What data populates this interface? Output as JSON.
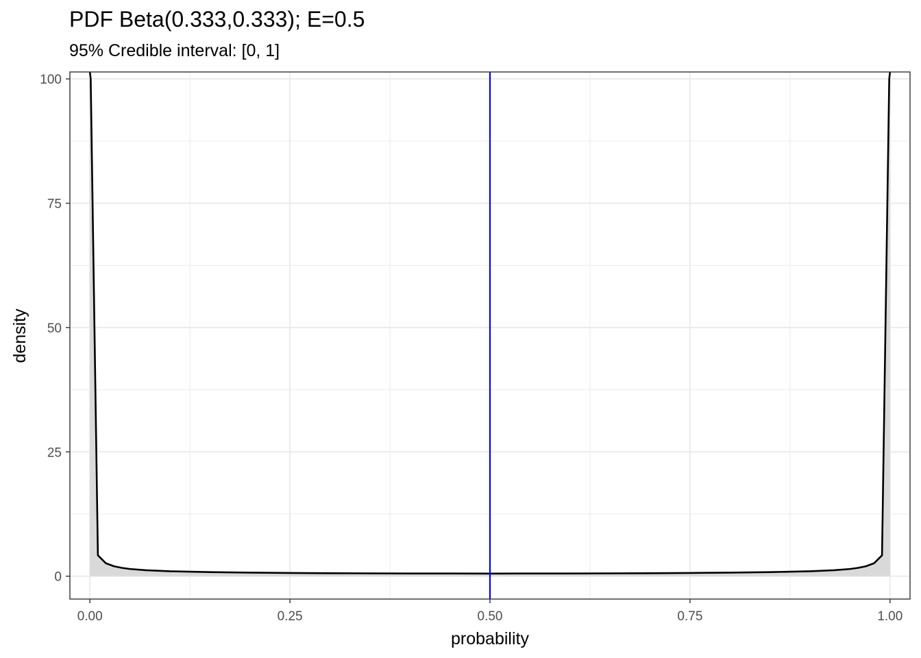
{
  "chart_data": {
    "type": "area",
    "title": "PDF Beta(0.333,0.333); E=0.5",
    "subtitle": "95% Credible interval: [0, 1]",
    "xlabel": "probability",
    "ylabel": "density",
    "xlim": [
      -0.025,
      1.025
    ],
    "ylim": [
      -4.6,
      101.4
    ],
    "x_ticks": [
      0.0,
      0.25,
      0.5,
      0.75,
      1.0
    ],
    "x_tick_labels": [
      "0.00",
      "0.25",
      "0.50",
      "0.75",
      "1.00"
    ],
    "y_ticks": [
      0,
      25,
      50,
      75,
      100
    ],
    "y_tick_labels": [
      "0",
      "25",
      "50",
      "75",
      "100"
    ],
    "grid": true,
    "legend": "none",
    "series": [
      {
        "x": [
          0.0,
          0.001,
          0.01,
          0.02,
          0.03,
          0.04,
          0.05,
          0.07,
          0.1,
          0.15,
          0.2,
          0.25,
          0.3,
          0.35,
          0.4,
          0.45,
          0.5,
          0.55,
          0.6,
          0.65,
          0.7,
          0.75,
          0.8,
          0.85,
          0.9,
          0.93,
          0.95,
          0.96,
          0.97,
          0.98,
          0.99,
          0.999,
          1.0
        ],
        "values": [
          120,
          100,
          4.2,
          2.6,
          2.0,
          1.67,
          1.45,
          1.2,
          0.99,
          0.82,
          0.72,
          0.65,
          0.6,
          0.57,
          0.55,
          0.54,
          0.53,
          0.54,
          0.55,
          0.57,
          0.6,
          0.65,
          0.72,
          0.82,
          0.99,
          1.2,
          1.45,
          1.67,
          2.0,
          2.6,
          4.2,
          100,
          120
        ]
      }
    ],
    "credible_interval": [
      0,
      1
    ],
    "reference_line": {
      "x": 0.5,
      "label": "E=0.5"
    },
    "colors": {
      "curve": "#000000",
      "fill": "#d9d9d9",
      "mean_line": "#0000ff",
      "grid": "#ebebeb",
      "panel_border": "#333333"
    }
  }
}
